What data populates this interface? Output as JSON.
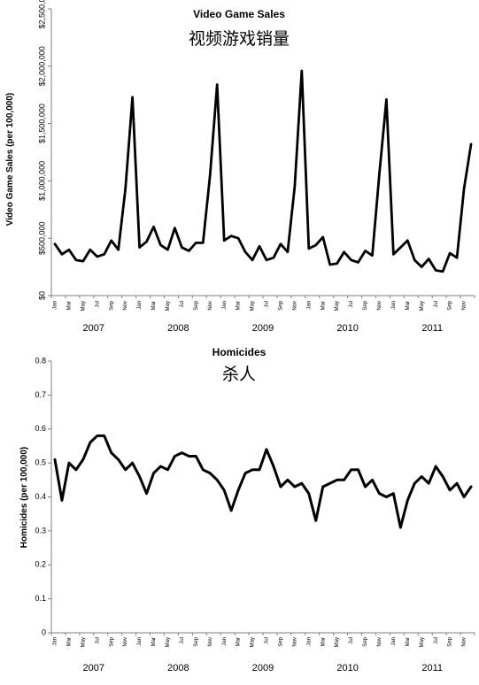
{
  "chart_data": [
    {
      "type": "line",
      "title": "Video Game Sales",
      "subtitle": "视频游戏销量",
      "ylabel": "Video Game Sales (per 100,000)",
      "ylim": [
        0,
        2500000
      ],
      "yticks": [
        0,
        500000,
        1000000,
        1500000,
        2000000,
        2500000
      ],
      "ytick_labels": [
        "$0",
        "$500,000",
        "$1,000,000",
        "$1,500,000",
        "$2,000,000",
        "$2,500,000"
      ],
      "xtick_labels": [
        "Jan",
        "Mar",
        "May",
        "Jul",
        "Sep",
        "Nov",
        "Jan",
        "Mar",
        "May",
        "Jul",
        "Sep",
        "Nov",
        "Jan",
        "Mar",
        "May",
        "Jul",
        "Sep",
        "Nov",
        "Jan",
        "Mar",
        "May",
        "Jul",
        "Sep",
        "Nov",
        "Jan",
        "Mar",
        "May",
        "Jul",
        "Sep",
        "Nov"
      ],
      "years": [
        "2007",
        "2008",
        "2009",
        "2010",
        "2011"
      ],
      "grid": false,
      "series": [
        {
          "values": [
            450000,
            360000,
            400000,
            310000,
            300000,
            400000,
            340000,
            360000,
            480000,
            400000,
            930000,
            1730000,
            420000,
            470000,
            600000,
            440000,
            400000,
            590000,
            420000,
            390000,
            460000,
            460000,
            1050000,
            1840000,
            480000,
            520000,
            500000,
            380000,
            310000,
            430000,
            310000,
            330000,
            450000,
            380000,
            950000,
            1960000,
            410000,
            440000,
            510000,
            270000,
            280000,
            380000,
            310000,
            290000,
            390000,
            350000,
            1060000,
            1710000,
            360000,
            420000,
            480000,
            310000,
            250000,
            320000,
            220000,
            210000,
            370000,
            330000,
            930000,
            1320000
          ]
        }
      ]
    },
    {
      "type": "line",
      "title": "Homicides",
      "subtitle": "杀人",
      "ylabel": "Homicides (per 100,000)",
      "ylim": [
        0,
        0.8
      ],
      "yticks": [
        0,
        0.1,
        0.2,
        0.3,
        0.4,
        0.5,
        0.6,
        0.7,
        0.8
      ],
      "ytick_labels": [
        "0",
        "0.1",
        "0.2",
        "0.3",
        "0.4",
        "0.5",
        "0.6",
        "0.7",
        "0.8"
      ],
      "xtick_labels": [
        "Jan",
        "Mar",
        "May",
        "Jul",
        "Sep",
        "Nov",
        "Jan",
        "Mar",
        "May",
        "Jul",
        "Sep",
        "Nov",
        "Jan",
        "Mar",
        "May",
        "Jul",
        "Sep",
        "Nov",
        "Jan",
        "Mar",
        "May",
        "Jul",
        "Sep",
        "Nov",
        "Jan",
        "Mar",
        "May",
        "Jul",
        "Sep",
        "Nov"
      ],
      "years": [
        "2007",
        "2008",
        "2009",
        "2010",
        "2011"
      ],
      "grid": false,
      "series": [
        {
          "values": [
            0.51,
            0.39,
            0.5,
            0.48,
            0.51,
            0.56,
            0.58,
            0.58,
            0.53,
            0.51,
            0.48,
            0.5,
            0.46,
            0.41,
            0.47,
            0.49,
            0.48,
            0.52,
            0.53,
            0.52,
            0.52,
            0.48,
            0.47,
            0.45,
            0.42,
            0.36,
            0.42,
            0.47,
            0.48,
            0.48,
            0.54,
            0.49,
            0.43,
            0.45,
            0.43,
            0.44,
            0.41,
            0.33,
            0.43,
            0.44,
            0.45,
            0.45,
            0.48,
            0.48,
            0.43,
            0.45,
            0.41,
            0.4,
            0.41,
            0.31,
            0.39,
            0.44,
            0.46,
            0.44,
            0.49,
            0.46,
            0.42,
            0.44,
            0.4,
            0.43
          ]
        }
      ]
    }
  ]
}
